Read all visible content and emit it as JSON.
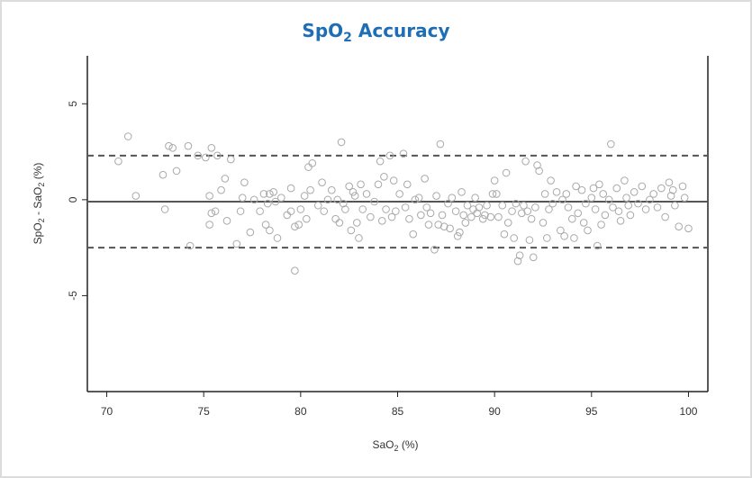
{
  "chart_data": {
    "type": "scatter",
    "title_main": "SpO",
    "title_sub": "2",
    "title_rest": " Accuracy",
    "xlabel_main": "SaO",
    "xlabel_sub": "2",
    "xlabel_rest": " (%)",
    "ylabel_a": "SpO",
    "ylabel_a_sub": "2",
    "ylabel_mid": " - SaO",
    "ylabel_b_sub": "2",
    "ylabel_rest": " (%)",
    "xlim": [
      69,
      101
    ],
    "ylim": [
      -10,
      7.5
    ],
    "x_ticks": [
      70,
      75,
      80,
      85,
      90,
      95,
      100
    ],
    "y_ticks": [
      5,
      0,
      -5
    ],
    "mean_line": -0.1,
    "upper_limit": 2.3,
    "lower_limit": -2.5,
    "points": [
      [
        70.6,
        2.0
      ],
      [
        71.1,
        3.3
      ],
      [
        71.5,
        0.2
      ],
      [
        72.9,
        1.3
      ],
      [
        73.0,
        -0.5
      ],
      [
        73.2,
        2.8
      ],
      [
        73.4,
        2.7
      ],
      [
        73.6,
        1.5
      ],
      [
        74.2,
        2.8
      ],
      [
        74.3,
        -2.4
      ],
      [
        74.7,
        2.3
      ],
      [
        75.1,
        2.2
      ],
      [
        75.3,
        -1.3
      ],
      [
        75.3,
        0.2
      ],
      [
        75.4,
        2.7
      ],
      [
        75.4,
        -0.7
      ],
      [
        75.6,
        -0.6
      ],
      [
        75.7,
        2.3
      ],
      [
        75.9,
        0.5
      ],
      [
        76.1,
        1.1
      ],
      [
        76.2,
        -1.1
      ],
      [
        76.4,
        2.1
      ],
      [
        76.7,
        -2.3
      ],
      [
        76.9,
        -0.6
      ],
      [
        77.0,
        0.1
      ],
      [
        77.1,
        0.9
      ],
      [
        77.4,
        -1.7
      ],
      [
        77.6,
        0.0
      ],
      [
        77.9,
        -0.6
      ],
      [
        78.1,
        0.3
      ],
      [
        78.2,
        -1.3
      ],
      [
        78.3,
        -0.2
      ],
      [
        78.4,
        -1.6
      ],
      [
        78.4,
        0.3
      ],
      [
        78.6,
        0.4
      ],
      [
        78.7,
        -0.1
      ],
      [
        78.8,
        -2.0
      ],
      [
        79.0,
        0.1
      ],
      [
        79.3,
        -0.8
      ],
      [
        79.5,
        -0.6
      ],
      [
        79.5,
        0.6
      ],
      [
        79.7,
        -1.4
      ],
      [
        79.7,
        -3.7
      ],
      [
        79.9,
        -1.3
      ],
      [
        80.0,
        -0.5
      ],
      [
        80.2,
        0.2
      ],
      [
        80.3,
        -1.0
      ],
      [
        80.4,
        1.7
      ],
      [
        80.5,
        0.5
      ],
      [
        80.6,
        1.9
      ],
      [
        80.9,
        -0.3
      ],
      [
        81.1,
        0.9
      ],
      [
        81.2,
        -0.6
      ],
      [
        81.4,
        0.0
      ],
      [
        81.6,
        0.5
      ],
      [
        81.8,
        -1.0
      ],
      [
        81.9,
        0.0
      ],
      [
        82.0,
        -1.2
      ],
      [
        82.1,
        3.0
      ],
      [
        82.2,
        -0.2
      ],
      [
        82.3,
        -0.5
      ],
      [
        82.5,
        0.7
      ],
      [
        82.6,
        -1.6
      ],
      [
        82.7,
        0.4
      ],
      [
        82.8,
        0.2
      ],
      [
        82.9,
        -1.2
      ],
      [
        83.0,
        -2.0
      ],
      [
        83.1,
        0.8
      ],
      [
        83.2,
        -0.5
      ],
      [
        83.4,
        0.3
      ],
      [
        83.6,
        -0.9
      ],
      [
        83.8,
        -0.1
      ],
      [
        84.0,
        0.8
      ],
      [
        84.1,
        2.0
      ],
      [
        84.2,
        -1.1
      ],
      [
        84.3,
        1.2
      ],
      [
        84.4,
        -0.5
      ],
      [
        84.6,
        2.3
      ],
      [
        84.7,
        -0.9
      ],
      [
        84.8,
        1.0
      ],
      [
        84.9,
        -0.6
      ],
      [
        85.1,
        0.3
      ],
      [
        85.3,
        2.4
      ],
      [
        85.4,
        -0.4
      ],
      [
        85.5,
        0.8
      ],
      [
        85.6,
        -1.0
      ],
      [
        85.8,
        -1.8
      ],
      [
        85.9,
        0.0
      ],
      [
        86.1,
        0.1
      ],
      [
        86.2,
        -0.8
      ],
      [
        86.4,
        1.1
      ],
      [
        86.5,
        -0.4
      ],
      [
        86.6,
        -1.3
      ],
      [
        86.7,
        -0.7
      ],
      [
        86.9,
        -2.6
      ],
      [
        87.0,
        0.2
      ],
      [
        87.1,
        -1.3
      ],
      [
        87.2,
        2.9
      ],
      [
        87.3,
        -0.8
      ],
      [
        87.4,
        -1.4
      ],
      [
        87.6,
        -0.2
      ],
      [
        87.7,
        -1.5
      ],
      [
        87.8,
        0.1
      ],
      [
        88.0,
        -0.6
      ],
      [
        88.1,
        -1.9
      ],
      [
        88.2,
        -1.7
      ],
      [
        88.3,
        0.4
      ],
      [
        88.4,
        -0.8
      ],
      [
        88.5,
        -1.2
      ],
      [
        88.6,
        -0.3
      ],
      [
        88.8,
        -0.9
      ],
      [
        88.9,
        -0.5
      ],
      [
        89.0,
        0.1
      ],
      [
        89.1,
        -0.7
      ],
      [
        89.2,
        -0.4
      ],
      [
        89.4,
        -1.0
      ],
      [
        89.5,
        -0.8
      ],
      [
        89.6,
        -0.3
      ],
      [
        89.8,
        -0.9
      ],
      [
        89.9,
        0.3
      ],
      [
        90.0,
        1.0
      ],
      [
        90.1,
        0.3
      ],
      [
        90.2,
        -0.9
      ],
      [
        90.4,
        -0.3
      ],
      [
        90.5,
        -1.8
      ],
      [
        90.6,
        1.4
      ],
      [
        90.7,
        -1.2
      ],
      [
        90.9,
        -0.6
      ],
      [
        91.0,
        -2.0
      ],
      [
        91.1,
        -0.2
      ],
      [
        91.2,
        -3.2
      ],
      [
        91.3,
        -2.9
      ],
      [
        91.4,
        -0.7
      ],
      [
        91.5,
        -0.3
      ],
      [
        91.6,
        2.0
      ],
      [
        91.7,
        -0.6
      ],
      [
        91.8,
        -2.1
      ],
      [
        91.9,
        -1.0
      ],
      [
        92.0,
        -3.0
      ],
      [
        92.1,
        -0.4
      ],
      [
        92.2,
        1.8
      ],
      [
        92.3,
        1.5
      ],
      [
        92.5,
        -1.2
      ],
      [
        92.6,
        0.3
      ],
      [
        92.7,
        -2.0
      ],
      [
        92.8,
        -0.5
      ],
      [
        92.9,
        1.0
      ],
      [
        93.0,
        -0.2
      ],
      [
        93.2,
        0.4
      ],
      [
        93.4,
        -1.6
      ],
      [
        93.5,
        0.0
      ],
      [
        93.6,
        -1.9
      ],
      [
        93.7,
        0.3
      ],
      [
        93.8,
        -0.4
      ],
      [
        94.0,
        -1.0
      ],
      [
        94.1,
        -2.0
      ],
      [
        94.2,
        0.7
      ],
      [
        94.3,
        -0.7
      ],
      [
        94.5,
        0.5
      ],
      [
        94.6,
        -1.2
      ],
      [
        94.7,
        -0.2
      ],
      [
        94.8,
        -1.6
      ],
      [
        95.0,
        0.1
      ],
      [
        95.1,
        0.6
      ],
      [
        95.2,
        -0.5
      ],
      [
        95.3,
        -2.4
      ],
      [
        95.4,
        0.8
      ],
      [
        95.5,
        -1.3
      ],
      [
        95.6,
        0.3
      ],
      [
        95.7,
        -0.8
      ],
      [
        95.9,
        0.0
      ],
      [
        96.0,
        2.9
      ],
      [
        96.1,
        -0.4
      ],
      [
        96.3,
        0.6
      ],
      [
        96.4,
        -0.6
      ],
      [
        96.5,
        -1.1
      ],
      [
        96.7,
        1.0
      ],
      [
        96.8,
        0.1
      ],
      [
        96.9,
        -0.3
      ],
      [
        97.0,
        -0.8
      ],
      [
        97.2,
        0.4
      ],
      [
        97.4,
        -0.2
      ],
      [
        97.6,
        0.7
      ],
      [
        97.8,
        -0.5
      ],
      [
        98.0,
        0.0
      ],
      [
        98.2,
        0.3
      ],
      [
        98.4,
        -0.4
      ],
      [
        98.6,
        0.6
      ],
      [
        98.8,
        -0.9
      ],
      [
        99.0,
        0.9
      ],
      [
        99.1,
        0.2
      ],
      [
        99.2,
        0.5
      ],
      [
        99.3,
        -0.3
      ],
      [
        99.5,
        -1.4
      ],
      [
        99.7,
        0.7
      ],
      [
        99.8,
        0.1
      ],
      [
        100.0,
        -1.5
      ]
    ]
  },
  "colors": {
    "title": "#1f6db5",
    "points": "#a9a9a9",
    "lines": "#555555",
    "axis": "#222222"
  }
}
